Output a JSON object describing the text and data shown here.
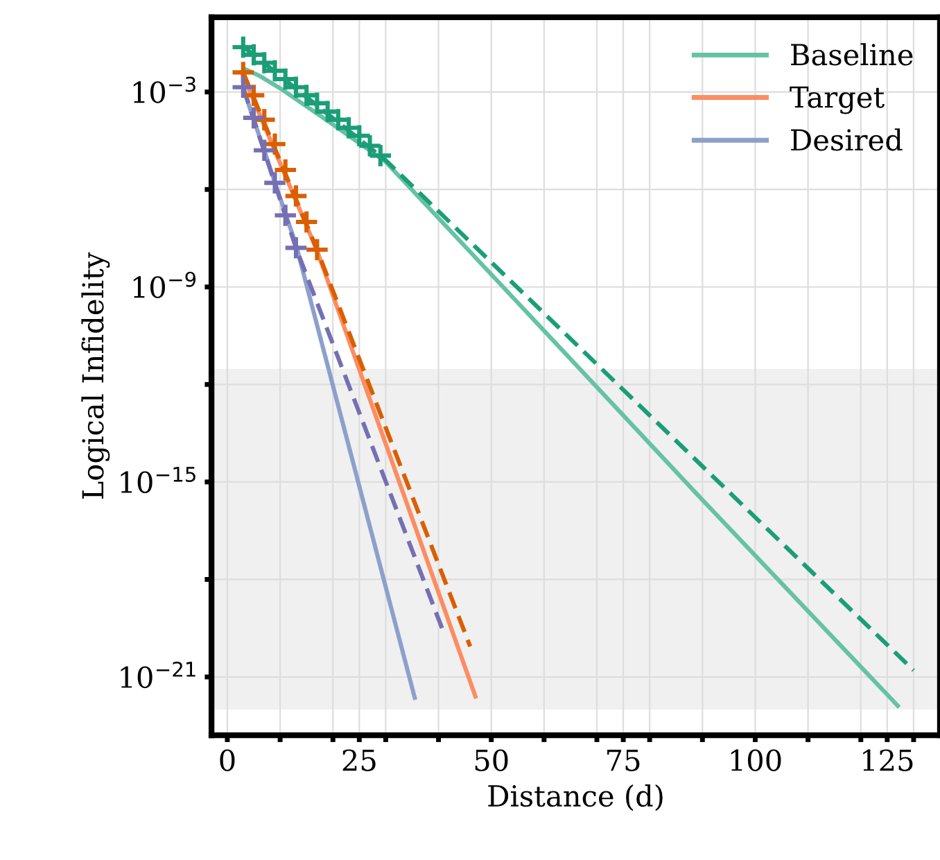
{
  "chart_data": {
    "type": "line",
    "xlabel": "Distance (d)",
    "ylabel": "Logical Infidelity",
    "log": "y",
    "grid": true,
    "legend": "top right",
    "xlim": [
      -3,
      135
    ],
    "ylim": [
      1.6e-23,
      0.2
    ],
    "xticks": [
      0,
      {
        "value": 10,
        "label": null
      },
      {
        "value": 20,
        "label": null
      },
      25,
      {
        "value": 30,
        "label": null
      },
      {
        "value": 40,
        "label": null
      },
      50,
      {
        "value": 60,
        "label": null
      },
      {
        "value": 70,
        "label": null
      },
      75,
      {
        "value": 80,
        "label": null
      },
      {
        "value": 90,
        "label": null
      },
      100,
      {
        "value": 110,
        "label": null
      },
      {
        "value": 120,
        "label": null
      },
      125,
      {
        "value": 130,
        "label": null
      }
    ],
    "yticks": [
      {
        "value": 0.001,
        "label": "10$^{−3}$"
      },
      {
        "value": 1e-06,
        "label": null
      },
      {
        "value": 1e-09,
        "label": "10$^{−9}$"
      },
      {
        "value": 1e-12,
        "label": null
      },
      {
        "value": 1e-15,
        "label": "10$^{−15}$"
      },
      {
        "value": 1e-18,
        "label": null
      },
      {
        "value": 1e-21,
        "label": "10$^{−21}$"
      }
    ],
    "bands": [
      {
        "axis": "y",
        "from": 1e-22,
        "to": 3e-12,
        "color": "#f0f0f0"
      }
    ],
    "series": [
      {
        "name": "Baseline",
        "line_style": "solid",
        "marker": "none",
        "color": "#66c2a5",
        "x": [
          3.4,
          6,
          10,
          20,
          30,
          60,
          90,
          127
        ],
        "values": [
          0.005,
          0.0032,
          0.0013,
          0.0001,
          7.1e-06,
          4.5e-11,
          2.8e-16,
          1.3e-22
        ]
      },
      {
        "name": "Target",
        "line_style": "solid",
        "marker": "none",
        "color": "#fc8d62",
        "x": [
          3,
          17,
          47
        ],
        "values": [
          0.0032,
          1.3e-08,
          2.5e-22
        ]
      },
      {
        "name": "Desired",
        "line_style": "solid",
        "marker": "none",
        "color": "#8da0cb",
        "x": [
          3,
          13,
          35.5
        ],
        "values": [
          0.0013,
          2e-08,
          2.3e-22
        ]
      },
      {
        "line_style": "dashed",
        "marker": "none",
        "color": "#1b9e77",
        "x": [
          3,
          30,
          130
        ],
        "values": [
          0.025,
          7.9e-06,
          1.6e-21
        ]
      },
      {
        "line_style": "dashed",
        "marker": "none",
        "color": "#d95f02",
        "x": [
          3,
          17,
          46
        ],
        "values": [
          0.004,
          1.4e-08,
          8.7e-21
        ]
      },
      {
        "line_style": "dashed",
        "marker": "none",
        "color": "#7570b3",
        "x": [
          3,
          13,
          41
        ],
        "values": [
          0.0014,
          1.6e-08,
          2.3e-20
        ]
      },
      {
        "type": "scatter",
        "marker": "cross",
        "color": "#1b9e77",
        "x": [
          3,
          5,
          7,
          9,
          11,
          13,
          15,
          17,
          19,
          21,
          23,
          25,
          27,
          29
        ],
        "values": [
          0.024,
          0.014,
          0.0079,
          0.0045,
          0.0025,
          0.0014,
          0.00079,
          0.00045,
          0.00025,
          0.00014,
          7.9e-05,
          4.5e-05,
          2.2e-05,
          1.1e-05
        ]
      },
      {
        "type": "scatter",
        "marker": "cross",
        "color": "#d95f02",
        "x": [
          3,
          5,
          7,
          9,
          11,
          13,
          15,
          17
        ],
        "values": [
          0.004,
          0.00079,
          0.00014,
          2.5e-05,
          4e-06,
          6.3e-07,
          1e-07,
          1.4e-08
        ]
      },
      {
        "type": "scatter",
        "marker": "cross",
        "color": "#7570b3",
        "x": [
          3,
          5,
          7,
          9,
          11,
          13
        ],
        "values": [
          0.0014,
          0.00016,
          1.6e-05,
          1.6e-06,
          1.6e-07,
          1.6e-08
        ]
      }
    ]
  }
}
